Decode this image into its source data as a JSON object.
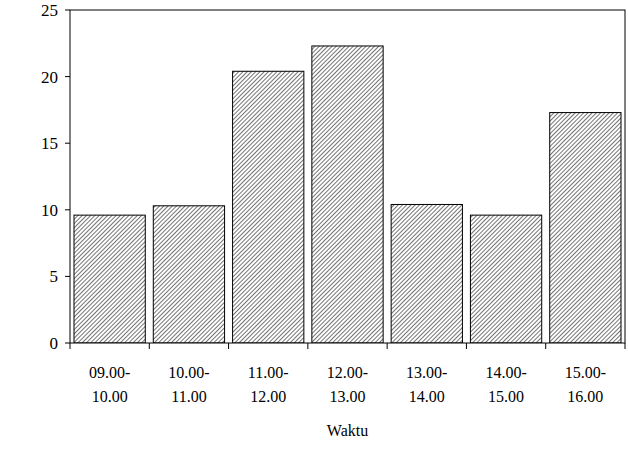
{
  "chart_data": {
    "type": "bar",
    "x_label": "Waktu",
    "categories": [
      "09.00-10.00",
      "10.00-11.00",
      "11.00-12.00",
      "12.00-13.00",
      "13.00-14.00",
      "14.00-15.00",
      "15.00-16.00"
    ],
    "values": [
      9.6,
      10.3,
      20.4,
      22.3,
      10.4,
      9.6,
      17.3
    ],
    "color": "#000000",
    "ylim": [
      0,
      25
    ],
    "yticks": [
      0,
      5,
      10,
      15,
      20,
      25
    ],
    "grid": false
  }
}
